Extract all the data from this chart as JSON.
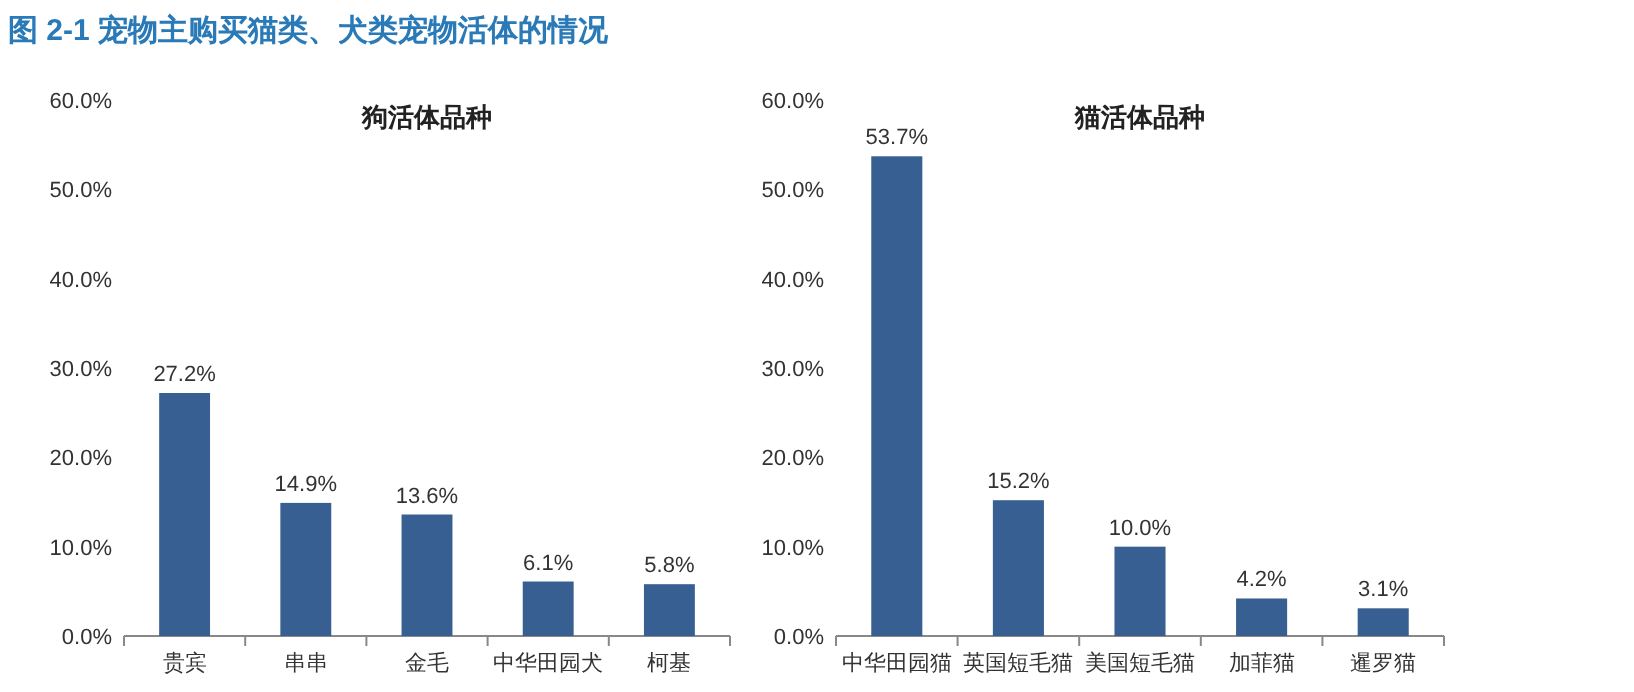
{
  "chart_data": [
    {
      "type": "bar",
      "title": "狗活体品种",
      "annotations": [
        "图 2-1 宠物主购买猫类、犬类宠物活体的情况"
      ],
      "categories": [
        "贵宾",
        "串串",
        "金毛",
        "中华田园犬",
        "柯基"
      ],
      "values": [
        27.2,
        14.9,
        13.6,
        6.1,
        5.8
      ],
      "value_labels": [
        "27.2%",
        "14.9%",
        "13.6%",
        "6.1%",
        "5.8%"
      ],
      "color": "#375f92",
      "ylim": [
        0,
        60
      ],
      "yticks": [
        {
          "value": 0,
          "label": "0.0%"
        },
        {
          "value": 10,
          "label": "10.0%"
        },
        {
          "value": 20,
          "label": "20.0%"
        },
        {
          "value": 30,
          "label": "30.0%"
        },
        {
          "value": 40,
          "label": "40.0%"
        },
        {
          "value": 50,
          "label": "50.0%"
        },
        {
          "value": 60,
          "label": "60.0%"
        }
      ]
    },
    {
      "type": "bar",
      "title": "猫活体品种",
      "categories": [
        "中华田园猫",
        "英国短毛猫",
        "美国短毛猫",
        "加菲猫",
        "暹罗猫"
      ],
      "values": [
        53.7,
        15.2,
        10.0,
        4.2,
        3.1
      ],
      "value_labels": [
        "53.7%",
        "15.2%",
        "10.0%",
        "4.2%",
        "3.1%"
      ],
      "color": "#375f92",
      "ylim": [
        0,
        60
      ],
      "yticks": [
        {
          "value": 0,
          "label": "0.0%"
        },
        {
          "value": 10,
          "label": "10.0%"
        },
        {
          "value": 20,
          "label": "20.0%"
        },
        {
          "value": 30,
          "label": "30.0%"
        },
        {
          "value": 40,
          "label": "40.0%"
        },
        {
          "value": 50,
          "label": "50.0%"
        },
        {
          "value": 60,
          "label": "60.0%"
        }
      ]
    }
  ]
}
